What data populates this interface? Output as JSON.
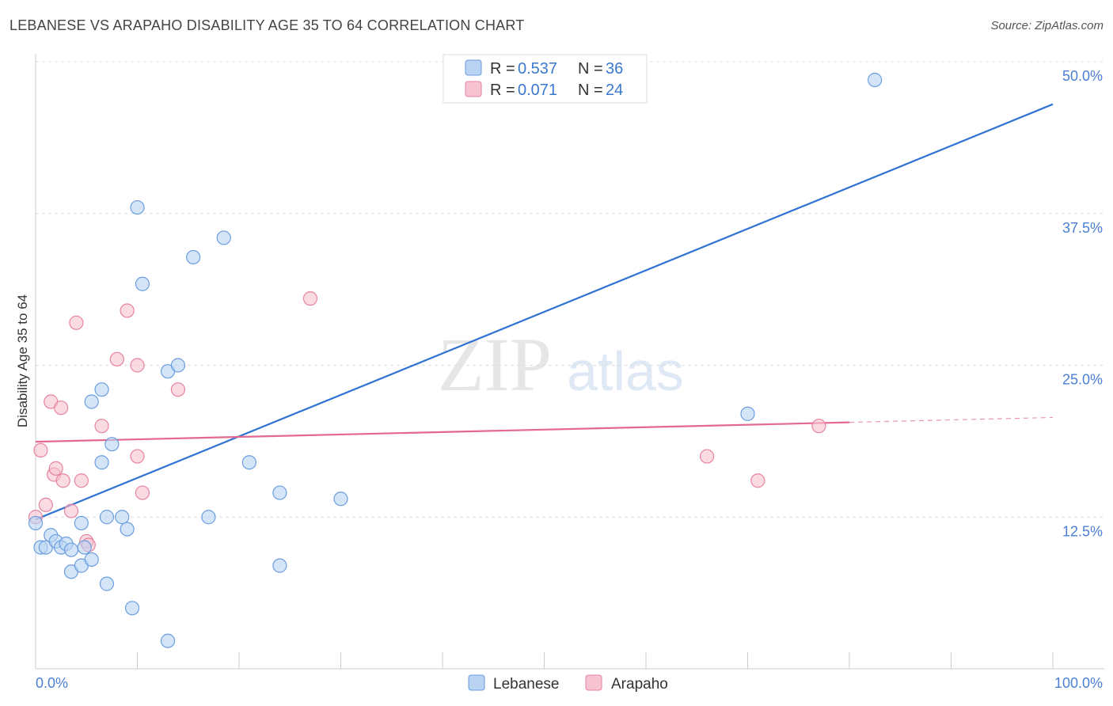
{
  "title": "LEBANESE VS ARAPAHO DISABILITY AGE 35 TO 64 CORRELATION CHART",
  "source": "Source: ZipAtlas.com",
  "watermark": {
    "zip": "ZIP",
    "atlas": "atlas"
  },
  "chart_data": {
    "type": "scatter",
    "title": "LEBANESE VS ARAPAHO DISABILITY AGE 35 TO 64 CORRELATION CHART",
    "xlabel": "",
    "ylabel": "Disability Age 35 to 64",
    "xlim": [
      0,
      100
    ],
    "ylim": [
      0,
      50
    ],
    "x_tick_labels": [
      "0.0%",
      "100.0%"
    ],
    "y_ticks": [
      12.5,
      25.0,
      37.5,
      50.0
    ],
    "y_tick_labels": [
      "12.5%",
      "25.0%",
      "37.5%",
      "50.0%"
    ],
    "grid": true,
    "legend": {
      "placement": "top-center",
      "rows": [
        {
          "r_label": "R = ",
          "r_value": "0.537",
          "n_label": "N = ",
          "n_value": "36"
        },
        {
          "r_label": "R = ",
          "r_value": "0.071",
          "n_label": "N = ",
          "n_value": "24"
        }
      ]
    },
    "series": [
      {
        "name": "Lebanese",
        "color": "#6a9ee0",
        "fill": "#b9d3f3",
        "trend": {
          "x0": 0,
          "y0": 12.3,
          "x1": 100,
          "y1": 46.5
        },
        "points": [
          [
            0.0,
            12.0
          ],
          [
            0.5,
            10.0
          ],
          [
            1.0,
            10.0
          ],
          [
            1.5,
            11.0
          ],
          [
            2.0,
            10.5
          ],
          [
            2.5,
            10.0
          ],
          [
            3.0,
            10.3
          ],
          [
            3.5,
            8.0
          ],
          [
            3.5,
            9.8
          ],
          [
            4.5,
            12.0
          ],
          [
            4.5,
            8.5
          ],
          [
            4.8,
            10.0
          ],
          [
            5.5,
            9.0
          ],
          [
            5.5,
            22.0
          ],
          [
            6.5,
            17.0
          ],
          [
            6.5,
            23.0
          ],
          [
            7.0,
            12.5
          ],
          [
            7.0,
            7.0
          ],
          [
            7.5,
            18.5
          ],
          [
            8.5,
            12.5
          ],
          [
            9.0,
            11.5
          ],
          [
            9.5,
            5.0
          ],
          [
            10.0,
            38.0
          ],
          [
            10.5,
            31.7
          ],
          [
            13.0,
            2.3
          ],
          [
            13.0,
            24.5
          ],
          [
            14.0,
            25.0
          ],
          [
            15.5,
            33.9
          ],
          [
            17.0,
            12.5
          ],
          [
            18.5,
            35.5
          ],
          [
            21.0,
            17.0
          ],
          [
            24.0,
            8.5
          ],
          [
            24.0,
            14.5
          ],
          [
            30.0,
            14.0
          ],
          [
            70.0,
            21.0
          ],
          [
            82.5,
            48.5
          ]
        ]
      },
      {
        "name": "Arapaho",
        "color": "#e7839d",
        "fill": "#f7c3d2",
        "trend": {
          "x0": 0,
          "y0": 18.7,
          "x1": 80,
          "y1": 20.3,
          "dash_to": 100,
          "dash_y": 20.7
        },
        "points": [
          [
            0.0,
            12.5
          ],
          [
            0.5,
            18.0
          ],
          [
            1.0,
            13.5
          ],
          [
            1.5,
            22.0
          ],
          [
            1.8,
            16.0
          ],
          [
            2.0,
            16.5
          ],
          [
            2.5,
            21.5
          ],
          [
            2.7,
            15.5
          ],
          [
            3.5,
            13.0
          ],
          [
            4.0,
            28.5
          ],
          [
            4.5,
            15.5
          ],
          [
            5.0,
            10.5
          ],
          [
            5.2,
            10.2
          ],
          [
            6.5,
            20.0
          ],
          [
            8.0,
            25.5
          ],
          [
            9.0,
            29.5
          ],
          [
            10.0,
            25.0
          ],
          [
            10.0,
            17.5
          ],
          [
            10.5,
            14.5
          ],
          [
            14.0,
            23.0
          ],
          [
            27.0,
            30.5
          ],
          [
            66.0,
            17.5
          ],
          [
            71.0,
            15.5
          ],
          [
            77.0,
            20.0
          ]
        ]
      }
    ]
  }
}
